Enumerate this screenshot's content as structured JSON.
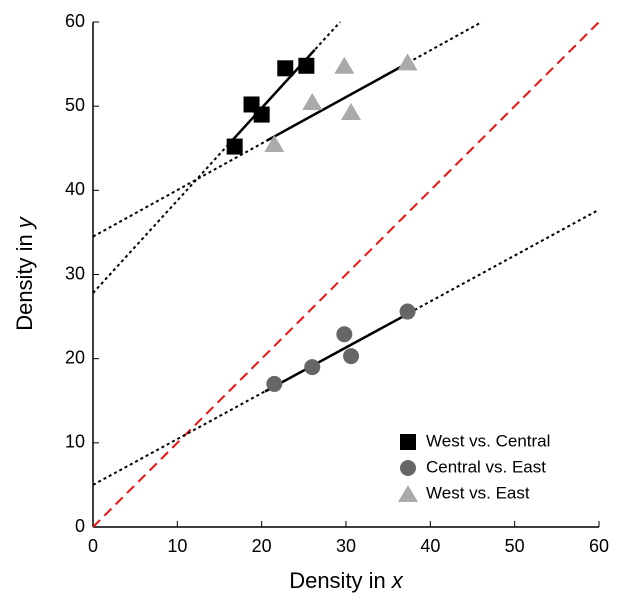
{
  "chart_data": {
    "type": "scatter",
    "xlabel": [
      "Density in",
      "x"
    ],
    "ylabel": [
      "Density in",
      "y"
    ],
    "xlim": [
      0,
      60
    ],
    "ylim": [
      0,
      60
    ],
    "xticks": [
      0,
      10,
      20,
      30,
      40,
      50,
      60
    ],
    "yticks": [
      0,
      10,
      20,
      30,
      40,
      50,
      60
    ],
    "legend": "lower right",
    "series": [
      {
        "name": "West vs. Central",
        "color": "#000000",
        "marker": "square",
        "x": [
          16.8,
          18.8,
          20.0,
          22.8,
          25.3
        ],
        "values": [
          45.2,
          50.2,
          49.0,
          54.5,
          54.8
        ]
      },
      {
        "name": "Central vs. East",
        "color": "#666666",
        "marker": "circle",
        "x": [
          21.5,
          26.0,
          29.8,
          30.6,
          37.3
        ],
        "values": [
          17.0,
          19.0,
          22.9,
          20.3,
          25.6
        ]
      },
      {
        "name": "West vs. East",
        "color": "#aaaaaa",
        "marker": "triangle",
        "x": [
          21.5,
          26.0,
          29.8,
          30.6,
          37.3
        ],
        "values": [
          45.5,
          50.5,
          54.8,
          49.3,
          55.2
        ]
      }
    ],
    "lines": [
      {
        "style": "dashed",
        "color": "#ee1111",
        "x": [
          0,
          60
        ],
        "values": [
          0,
          60
        ]
      },
      {
        "style": "dotted",
        "color": "#000000",
        "x": [
          0,
          29.3
        ],
        "values": [
          27.8,
          60
        ]
      },
      {
        "style": "dotted",
        "color": "#000000",
        "x": [
          0,
          46.1
        ],
        "values": [
          34.5,
          60
        ]
      },
      {
        "style": "dotted",
        "color": "#000000",
        "x": [
          0,
          60
        ],
        "values": [
          5.0,
          37.7
        ]
      },
      {
        "style": "solid",
        "color": "#000000",
        "x": [
          16.3,
          26.3
        ],
        "values": [
          45.7,
          56.7
        ]
      },
      {
        "style": "solid",
        "color": "#000000",
        "x": [
          20.6,
          37.3
        ],
        "values": [
          45.9,
          55.1
        ]
      },
      {
        "style": "solid",
        "color": "#000000",
        "x": [
          20.4,
          37.3
        ],
        "values": [
          16.1,
          25.3
        ]
      }
    ]
  }
}
